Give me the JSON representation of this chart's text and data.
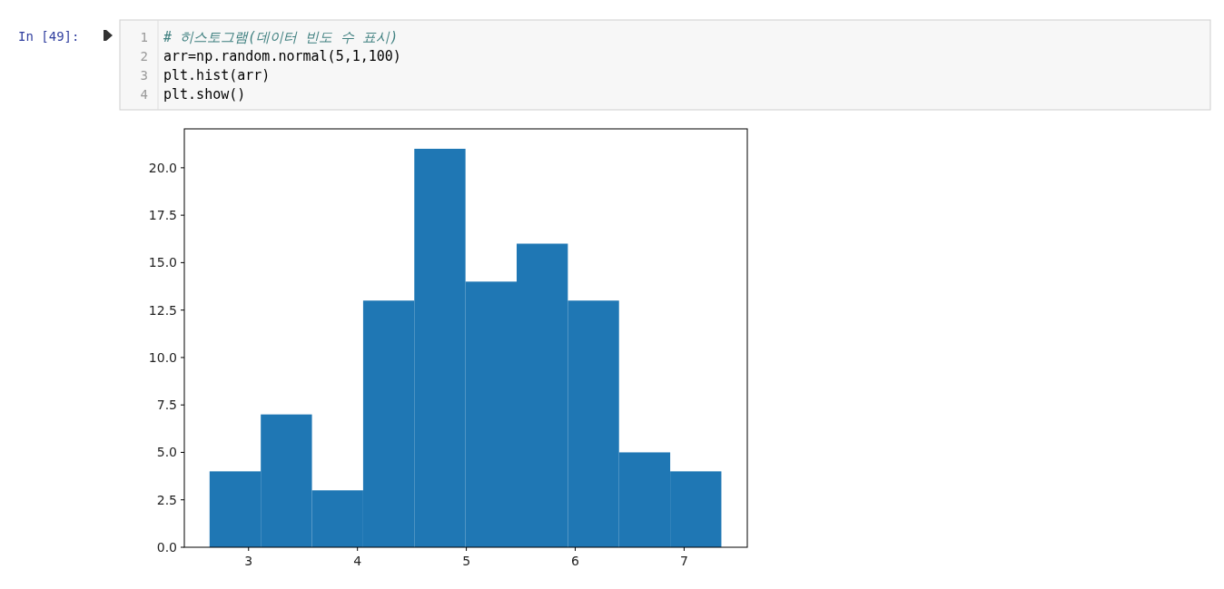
{
  "chart_data": {
    "type": "histogram",
    "color": "#1f77b4",
    "bins": [
      2.642,
      3.112,
      3.582,
      4.052,
      4.522,
      4.992,
      5.462,
      5.932,
      6.402,
      6.872,
      7.342
    ],
    "values": [
      4,
      7,
      3,
      13,
      21,
      14,
      16,
      13,
      5,
      4
    ],
    "xlim": [
      2.41,
      7.58
    ],
    "ylim": [
      0,
      22.05
    ],
    "xticks": [
      3,
      4,
      5,
      6,
      7
    ],
    "yticks": [
      {
        "value": 0,
        "label": "0.0"
      },
      {
        "value": 2.5,
        "label": "2.5"
      },
      {
        "value": 5,
        "label": "5.0"
      },
      {
        "value": 7.5,
        "label": "7.5"
      },
      {
        "value": 10,
        "label": "10.0"
      },
      {
        "value": 12.5,
        "label": "12.5"
      },
      {
        "value": 15,
        "label": "15.0"
      },
      {
        "value": 17.5,
        "label": "17.5"
      },
      {
        "value": 20,
        "label": "20.0"
      }
    ],
    "annotations": [
      "In [49]:",
      "1",
      "# 히스토그램(데이터 빈도 수 표시)",
      "2",
      "arr=np.random.normal(5,1,100)",
      "3",
      "plt.hist(arr)",
      "4",
      "plt.show()"
    ]
  }
}
